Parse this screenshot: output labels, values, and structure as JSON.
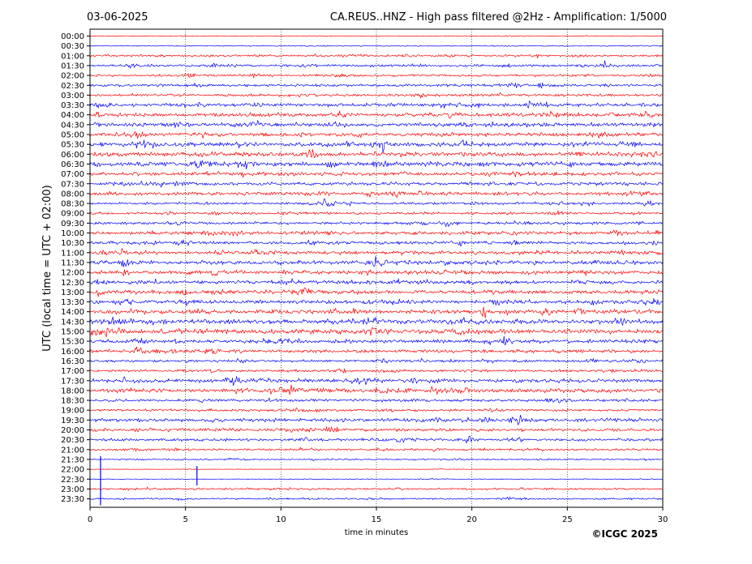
{
  "header": {
    "date": "03-06-2025",
    "title": "CA.REUS..HNZ - High pass filtered @2Hz - Amplification: 1/5000"
  },
  "footer": {
    "copyright": "©ICGC 2025"
  },
  "colors": {
    "trace_red": "#ff0000",
    "trace_blue": "#0000ff",
    "grid": "#000000"
  },
  "chart_data": {
    "type": "line",
    "title": "CA.REUS..HNZ - High pass filtered @2Hz - Amplification: 1/5000",
    "xlabel": "time in minutes",
    "ylabel": "UTC (local time = UTC + 02:00)",
    "xlim": [
      0,
      30
    ],
    "xticks": [
      "0",
      "5",
      "10",
      "15",
      "20",
      "25",
      "30"
    ],
    "grid": "vertical dotted lines at 5-minute intervals",
    "row_labels": [
      "00:00",
      "00:30",
      "01:00",
      "01:30",
      "02:00",
      "02:30",
      "03:00",
      "03:30",
      "04:00",
      "04:30",
      "05:00",
      "05:30",
      "06:00",
      "06:30",
      "07:00",
      "07:30",
      "08:00",
      "08:30",
      "09:00",
      "09:30",
      "10:00",
      "10:30",
      "11:00",
      "11:30",
      "12:00",
      "12:30",
      "13:00",
      "13:30",
      "14:00",
      "14:30",
      "15:00",
      "15:30",
      "16:00",
      "16:30",
      "17:00",
      "17:30",
      "18:00",
      "18:30",
      "19:00",
      "19:30",
      "20:00",
      "20:30",
      "21:00",
      "21:30",
      "22:00",
      "22:30",
      "23:00",
      "23:30"
    ],
    "trace_color_pattern": "alternating red (even hours) / blue (half hours)",
    "trace_end_minutes": [
      30,
      30,
      30,
      30,
      30,
      30,
      30,
      30,
      30,
      30,
      30,
      30,
      30,
      30,
      30,
      30,
      30,
      30,
      30,
      30,
      30,
      30,
      30,
      30,
      30,
      30,
      30,
      30,
      30,
      30,
      30,
      30,
      30,
      30,
      30,
      30,
      30,
      30,
      30,
      30,
      30,
      30,
      30,
      30,
      30,
      30,
      30,
      30
    ],
    "trace_amplitude": [
      0.06,
      0.08,
      0.18,
      0.22,
      0.2,
      0.22,
      0.22,
      0.3,
      0.35,
      0.35,
      0.32,
      0.38,
      0.38,
      0.4,
      0.32,
      0.28,
      0.3,
      0.22,
      0.2,
      0.24,
      0.3,
      0.28,
      0.3,
      0.34,
      0.32,
      0.3,
      0.34,
      0.34,
      0.36,
      0.42,
      0.4,
      0.32,
      0.28,
      0.22,
      0.2,
      0.34,
      0.36,
      0.24,
      0.2,
      0.3,
      0.26,
      0.24,
      0.18,
      0.12,
      0.04,
      0.05,
      0.16,
      0.14
    ],
    "events": [
      {
        "row": "11:30",
        "minute": 1.7,
        "amplitude": 1.6
      },
      {
        "row": "11:00",
        "minute": 1.7,
        "amplitude": 1.0
      },
      {
        "row": "12:00",
        "minute": 1.8,
        "amplitude": 0.8
      },
      {
        "row": "17:30",
        "minute": 7.6,
        "amplitude": 1.0
      },
      {
        "row": "18:00",
        "minute": 10.5,
        "amplitude": 0.8
      },
      {
        "row": "14:00",
        "minute": 20.6,
        "amplitude": 1.0
      },
      {
        "row": "15:00",
        "minute": 14.8,
        "amplitude": 0.8
      },
      {
        "row": "20:30",
        "minute": 19.8,
        "amplitude": 0.9
      },
      {
        "row": "08:00",
        "minute": 16.1,
        "amplitude": 0.7
      },
      {
        "row": "10:00",
        "minute": 29.7,
        "amplitude": 0.8
      },
      {
        "row": "03:30",
        "minute": 23.0,
        "amplitude": 0.7
      },
      {
        "row": "01:30",
        "minute": 27.0,
        "amplitude": 0.6
      },
      {
        "row": "13:00",
        "minute": 0.4,
        "amplitude": 0.7
      }
    ],
    "artifacts": [
      {
        "from_row": "21:30",
        "to_row": "23:30",
        "minute": 0.55
      },
      {
        "from_row": "22:00",
        "to_row": "22:30",
        "minute": 5.6
      }
    ]
  }
}
